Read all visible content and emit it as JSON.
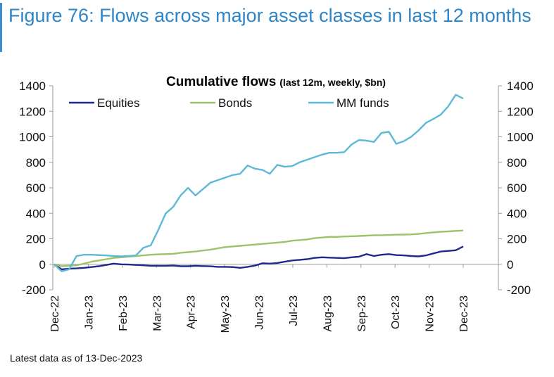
{
  "figure_title": "Figure 76: Flows across major asset classes in last 12 months",
  "footnote": "Latest data as of 13-Dec-2023",
  "colors": {
    "equities": "#1f2a8c",
    "bonds": "#9dc36a",
    "mm_funds": "#5db9d6",
    "accent": "#2e86c9"
  },
  "chart_data": {
    "type": "line",
    "title": "Cumulative flows",
    "subtitle": "(last 12m, weekly, $bn)",
    "xlabel": "",
    "ylabel": "",
    "ylim": [
      -200,
      1400
    ],
    "yticks": [
      -200,
      0,
      200,
      400,
      600,
      800,
      1000,
      1200,
      1400
    ],
    "secondary_yticks": [
      -200,
      0,
      200,
      400,
      600,
      800,
      1000,
      1200,
      1400
    ],
    "xtick_labels": [
      "Dec-22",
      "Jan-23",
      "Feb-23",
      "Mar-23",
      "Apr-23",
      "May-23",
      "Jun-23",
      "Jul-23",
      "Aug-23",
      "Sep-23",
      "Oct-23",
      "Nov-23",
      "Dec-23"
    ],
    "legend_position": "top-left",
    "grid": false,
    "series": [
      {
        "name": "Equities",
        "color": "#1f2a8c",
        "values": [
          0,
          -40,
          -35,
          -32,
          -28,
          -22,
          -15,
          -5,
          5,
          0,
          -2,
          -5,
          -8,
          -12,
          -12,
          -12,
          -10,
          -15,
          -15,
          -12,
          -14,
          -16,
          -20,
          -20,
          -22,
          -28,
          -20,
          -10,
          8,
          5,
          10,
          20,
          30,
          35,
          40,
          50,
          55,
          52,
          50,
          48,
          55,
          60,
          80,
          65,
          75,
          80,
          72,
          70,
          65,
          62,
          70,
          85,
          100,
          105,
          110,
          140
        ]
      },
      {
        "name": "Bonds",
        "color": "#9dc36a",
        "values": [
          0,
          -15,
          -12,
          -8,
          5,
          20,
          30,
          40,
          50,
          55,
          60,
          65,
          70,
          75,
          78,
          80,
          82,
          90,
          95,
          100,
          108,
          115,
          125,
          135,
          140,
          145,
          150,
          155,
          160,
          165,
          170,
          175,
          185,
          190,
          195,
          205,
          210,
          215,
          215,
          218,
          220,
          222,
          225,
          228,
          228,
          230,
          232,
          233,
          235,
          238,
          245,
          250,
          255,
          258,
          262,
          265
        ]
      },
      {
        "name": "MM funds",
        "color": "#5db9d6",
        "values": [
          0,
          -55,
          -40,
          65,
          75,
          75,
          72,
          70,
          65,
          62,
          65,
          70,
          130,
          150,
          270,
          400,
          450,
          540,
          600,
          540,
          590,
          640,
          660,
          680,
          700,
          710,
          775,
          750,
          740,
          710,
          780,
          765,
          770,
          800,
          820,
          840,
          860,
          875,
          875,
          880,
          940,
          975,
          970,
          960,
          1030,
          1040,
          945,
          965,
          1000,
          1050,
          1110,
          1140,
          1175,
          1240,
          1330,
          1300
        ]
      }
    ]
  }
}
